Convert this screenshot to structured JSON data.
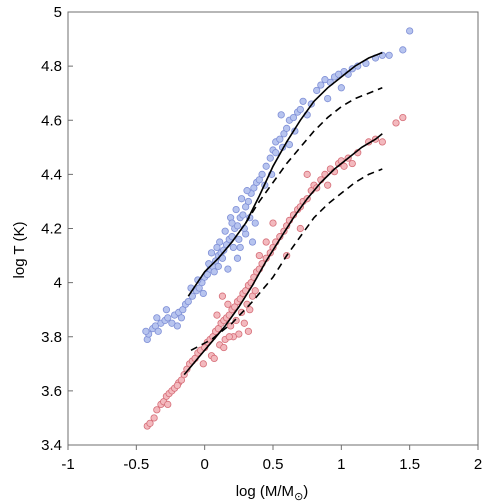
{
  "chart_data": {
    "type": "scatter",
    "title": "",
    "xlabel": "log (M/M",
    "xlabel_sub": "⊙",
    "xlabel_close": ")",
    "ylabel": "log T (K)",
    "xlim": [
      -1,
      2
    ],
    "ylim": [
      3.4,
      5
    ],
    "xticks": [
      -1,
      -0.5,
      0,
      0.5,
      1,
      1.5,
      2
    ],
    "xtick_labels": [
      "-1",
      "-0.5",
      "0",
      "0.5",
      "1",
      "1.5",
      "2"
    ],
    "yticks": [
      3.4,
      3.6,
      3.8,
      4,
      4.2,
      4.4,
      4.6,
      4.8,
      5
    ],
    "ytick_labels": [
      "3.4",
      "3.6",
      "3.8",
      "4",
      "4.2",
      "4.4",
      "4.6",
      "4.8",
      "5"
    ],
    "grid": false,
    "legend": "none",
    "colors": {
      "blue_fill": "#b7c4ef",
      "blue_edge": "#7f8fd6",
      "red_fill": "#f3b9be",
      "red_edge": "#d66e78",
      "line": "#000000",
      "axis": "#6f6f6f"
    },
    "series": [
      {
        "kind": "scatter",
        "color": "blue",
        "points": [
          [
            -0.42,
            3.79
          ],
          [
            -0.41,
            3.81
          ],
          [
            -0.43,
            3.82
          ],
          [
            -0.38,
            3.83
          ],
          [
            -0.36,
            3.84
          ],
          [
            -0.32,
            3.85
          ],
          [
            -0.29,
            3.86
          ],
          [
            -0.34,
            3.82
          ],
          [
            -0.27,
            3.87
          ],
          [
            -0.22,
            3.88
          ],
          [
            -0.24,
            3.85
          ],
          [
            -0.19,
            3.89
          ],
          [
            -0.16,
            3.9
          ],
          [
            -0.14,
            3.92
          ],
          [
            -0.12,
            3.93
          ],
          [
            -0.17,
            3.87
          ],
          [
            -0.09,
            3.95
          ],
          [
            -0.06,
            3.97
          ],
          [
            -0.04,
            3.98
          ],
          [
            -0.02,
            4.0
          ],
          [
            0.0,
            4.02
          ],
          [
            0.02,
            4.03
          ],
          [
            -0.05,
            4.01
          ],
          [
            0.04,
            4.05
          ],
          [
            0.06,
            4.06
          ],
          [
            0.08,
            4.08
          ],
          [
            0.1,
            4.1
          ],
          [
            0.03,
            4.07
          ],
          [
            0.12,
            4.11
          ],
          [
            0.14,
            4.12
          ],
          [
            0.16,
            4.14
          ],
          [
            0.18,
            4.16
          ],
          [
            0.2,
            4.17
          ],
          [
            0.13,
            4.09
          ],
          [
            0.07,
            4.04
          ],
          [
            0.22,
            4.2
          ],
          [
            0.24,
            4.21
          ],
          [
            0.26,
            4.24
          ],
          [
            0.28,
            4.25
          ],
          [
            0.3,
            4.28
          ],
          [
            0.21,
            4.13
          ],
          [
            0.25,
            4.16
          ],
          [
            0.32,
            4.3
          ],
          [
            0.34,
            4.33
          ],
          [
            0.27,
            4.31
          ],
          [
            0.23,
            4.27
          ],
          [
            0.36,
            4.35
          ],
          [
            0.38,
            4.37
          ],
          [
            0.3,
            4.18
          ],
          [
            0.29,
            4.2
          ],
          [
            0.19,
            4.24
          ],
          [
            0.15,
            4.19
          ],
          [
            0.11,
            4.15
          ],
          [
            0.09,
            4.13
          ],
          [
            0.17,
            4.05
          ],
          [
            0.24,
            4.09
          ],
          [
            0.33,
            4.24
          ],
          [
            0.35,
            4.15
          ],
          [
            0.4,
            4.38
          ],
          [
            0.42,
            4.4
          ],
          [
            0.45,
            4.43
          ],
          [
            0.48,
            4.46
          ],
          [
            0.5,
            4.49
          ],
          [
            0.52,
            4.52
          ],
          [
            0.55,
            4.53
          ],
          [
            0.58,
            4.55
          ],
          [
            0.6,
            4.57
          ],
          [
            0.62,
            4.6
          ],
          [
            0.65,
            4.61
          ],
          [
            0.68,
            4.63
          ],
          [
            0.52,
            4.48
          ],
          [
            0.56,
            4.62
          ],
          [
            0.66,
            4.56
          ],
          [
            0.7,
            4.64
          ],
          [
            0.75,
            4.62
          ],
          [
            0.72,
            4.67
          ],
          [
            0.78,
            4.66
          ],
          [
            0.82,
            4.71
          ],
          [
            0.85,
            4.73
          ],
          [
            0.88,
            4.75
          ],
          [
            0.92,
            4.74
          ],
          [
            0.95,
            4.76
          ],
          [
            0.98,
            4.77
          ],
          [
            1.02,
            4.78
          ],
          [
            1.05,
            4.77
          ],
          [
            1.0,
            4.72
          ],
          [
            1.08,
            4.79
          ],
          [
            1.12,
            4.8
          ],
          [
            1.18,
            4.81
          ],
          [
            1.25,
            4.83
          ],
          [
            1.3,
            4.84
          ],
          [
            1.35,
            4.84
          ],
          [
            1.45,
            4.86
          ],
          [
            1.5,
            4.93
          ],
          [
            0.9,
            4.68
          ],
          [
            0.62,
            4.51
          ],
          [
            -0.35,
            3.87
          ],
          [
            -0.28,
            3.9
          ],
          [
            -0.2,
            3.84
          ],
          [
            -0.1,
            3.98
          ],
          [
            -0.01,
            3.96
          ],
          [
            0.05,
            4.11
          ],
          [
            0.1,
            4.06
          ],
          [
            0.2,
            4.22
          ],
          [
            0.26,
            4.13
          ],
          [
            0.31,
            4.34
          ],
          [
            0.37,
            4.22
          ],
          [
            0.44,
            4.36
          ],
          [
            0.49,
            4.4
          ],
          [
            0.57,
            4.5
          ]
        ]
      },
      {
        "kind": "scatter",
        "color": "red",
        "points": [
          [
            -0.42,
            3.47
          ],
          [
            -0.4,
            3.48
          ],
          [
            -0.37,
            3.5
          ],
          [
            -0.35,
            3.53
          ],
          [
            -0.32,
            3.55
          ],
          [
            -0.3,
            3.56
          ],
          [
            -0.28,
            3.58
          ],
          [
            -0.26,
            3.59
          ],
          [
            -0.24,
            3.6
          ],
          [
            -0.22,
            3.61
          ],
          [
            -0.19,
            3.63
          ],
          [
            -0.17,
            3.64
          ],
          [
            -0.15,
            3.66
          ],
          [
            -0.13,
            3.68
          ],
          [
            -0.11,
            3.7
          ],
          [
            -0.09,
            3.71
          ],
          [
            -0.07,
            3.72
          ],
          [
            -0.05,
            3.74
          ],
          [
            -0.03,
            3.75
          ],
          [
            0.0,
            3.76
          ],
          [
            0.02,
            3.78
          ],
          [
            0.04,
            3.79
          ],
          [
            0.06,
            3.8
          ],
          [
            0.08,
            3.82
          ],
          [
            0.1,
            3.83
          ],
          [
            0.12,
            3.85
          ],
          [
            0.14,
            3.86
          ],
          [
            0.16,
            3.87
          ],
          [
            0.18,
            3.88
          ],
          [
            0.2,
            3.9
          ],
          [
            0.22,
            3.91
          ],
          [
            0.24,
            3.93
          ],
          [
            0.26,
            3.94
          ],
          [
            0.28,
            3.96
          ],
          [
            0.3,
            3.97
          ],
          [
            0.32,
            3.99
          ],
          [
            0.34,
            4.0
          ],
          [
            0.36,
            4.02
          ],
          [
            0.05,
            3.73
          ],
          [
            0.11,
            3.77
          ],
          [
            0.15,
            3.79
          ],
          [
            0.19,
            3.84
          ],
          [
            0.23,
            3.86
          ],
          [
            0.27,
            3.89
          ],
          [
            0.31,
            3.92
          ],
          [
            0.35,
            3.95
          ],
          [
            0.25,
            3.81
          ],
          [
            0.29,
            3.85
          ],
          [
            0.33,
            3.9
          ],
          [
            0.21,
            3.8
          ],
          [
            0.17,
            3.92
          ],
          [
            0.09,
            3.88
          ],
          [
            0.13,
            3.95
          ],
          [
            0.38,
            4.04
          ],
          [
            0.4,
            4.05
          ],
          [
            0.42,
            4.07
          ],
          [
            0.45,
            4.09
          ],
          [
            0.48,
            4.11
          ],
          [
            0.5,
            4.13
          ],
          [
            0.52,
            4.15
          ],
          [
            0.55,
            4.17
          ],
          [
            0.58,
            4.19
          ],
          [
            0.6,
            4.21
          ],
          [
            0.62,
            4.23
          ],
          [
            0.65,
            4.25
          ],
          [
            0.68,
            4.27
          ],
          [
            0.7,
            4.28
          ],
          [
            0.72,
            4.3
          ],
          [
            0.75,
            4.31
          ],
          [
            0.78,
            4.34
          ],
          [
            0.8,
            4.36
          ],
          [
            0.82,
            4.35
          ],
          [
            0.85,
            4.38
          ],
          [
            0.88,
            4.4
          ],
          [
            0.92,
            4.42
          ],
          [
            0.95,
            4.41
          ],
          [
            0.98,
            4.44
          ],
          [
            1.0,
            4.45
          ],
          [
            1.02,
            4.43
          ],
          [
            1.05,
            4.46
          ],
          [
            1.08,
            4.44
          ],
          [
            1.12,
            4.48
          ],
          [
            1.2,
            4.52
          ],
          [
            1.25,
            4.53
          ],
          [
            1.3,
            4.52
          ],
          [
            1.4,
            4.59
          ],
          [
            1.45,
            4.61
          ],
          [
            0.5,
            4.22
          ],
          [
            0.6,
            4.1
          ],
          [
            0.7,
            4.2
          ],
          [
            0.75,
            4.4
          ],
          [
            0.9,
            4.36
          ],
          [
            0.45,
            4.15
          ],
          [
            0.4,
            4.1
          ],
          [
            -0.01,
            3.7
          ],
          [
            0.07,
            3.72
          ],
          [
            -0.2,
            3.62
          ],
          [
            -0.27,
            3.55
          ],
          [
            0.14,
            3.76
          ],
          [
            0.18,
            3.8
          ],
          [
            0.32,
            3.82
          ],
          [
            0.37,
            3.97
          ]
        ]
      },
      {
        "kind": "line",
        "style": "solid",
        "color": "black",
        "points": [
          [
            -0.12,
            3.95
          ],
          [
            0.0,
            4.04
          ],
          [
            0.1,
            4.09
          ],
          [
            0.2,
            4.15
          ],
          [
            0.3,
            4.22
          ],
          [
            0.4,
            4.32
          ],
          [
            0.5,
            4.43
          ],
          [
            0.6,
            4.52
          ],
          [
            0.7,
            4.6
          ],
          [
            0.8,
            4.67
          ],
          [
            0.9,
            4.72
          ],
          [
            1.0,
            4.76
          ],
          [
            1.1,
            4.8
          ],
          [
            1.2,
            4.83
          ],
          [
            1.3,
            4.85
          ]
        ]
      },
      {
        "kind": "line",
        "style": "dashed",
        "color": "black",
        "points": [
          [
            0.3,
            4.22
          ],
          [
            0.4,
            4.3
          ],
          [
            0.5,
            4.37
          ],
          [
            0.6,
            4.44
          ],
          [
            0.7,
            4.5
          ],
          [
            0.8,
            4.56
          ],
          [
            0.9,
            4.61
          ],
          [
            1.0,
            4.65
          ],
          [
            1.1,
            4.68
          ],
          [
            1.2,
            4.7
          ],
          [
            1.3,
            4.72
          ]
        ]
      },
      {
        "kind": "line",
        "style": "solid",
        "color": "black",
        "points": [
          [
            -0.15,
            3.66
          ],
          [
            -0.05,
            3.72
          ],
          [
            0.05,
            3.78
          ],
          [
            0.15,
            3.84
          ],
          [
            0.25,
            3.91
          ],
          [
            0.35,
            3.99
          ],
          [
            0.45,
            4.08
          ],
          [
            0.55,
            4.16
          ],
          [
            0.65,
            4.24
          ],
          [
            0.75,
            4.31
          ],
          [
            0.85,
            4.37
          ],
          [
            0.95,
            4.42
          ],
          [
            1.05,
            4.46
          ],
          [
            1.15,
            4.5
          ],
          [
            1.25,
            4.53
          ],
          [
            1.3,
            4.55
          ]
        ]
      },
      {
        "kind": "line",
        "style": "dashed",
        "color": "black",
        "points": [
          [
            -0.1,
            3.75
          ],
          [
            0.05,
            3.79
          ],
          [
            0.2,
            3.85
          ],
          [
            0.35,
            3.93
          ],
          [
            0.5,
            4.02
          ],
          [
            0.6,
            4.1
          ],
          [
            0.7,
            4.17
          ],
          [
            0.8,
            4.24
          ],
          [
            0.9,
            4.29
          ],
          [
            1.0,
            4.33
          ],
          [
            1.1,
            4.37
          ],
          [
            1.2,
            4.4
          ],
          [
            1.3,
            4.42
          ]
        ]
      }
    ]
  }
}
